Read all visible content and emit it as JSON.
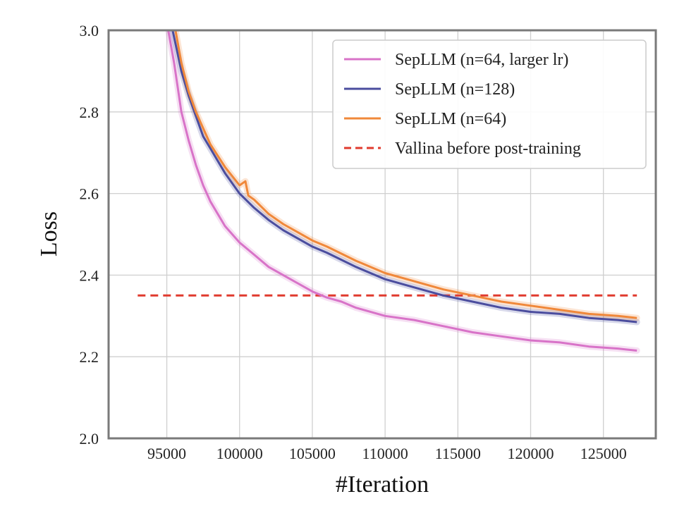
{
  "chart_data": {
    "type": "line",
    "title": "",
    "xlabel": "#Iteration",
    "ylabel": "Loss",
    "xlim": [
      91000,
      128600
    ],
    "ylim": [
      2.0,
      3.0
    ],
    "x_ticks": [
      95000,
      100000,
      105000,
      110000,
      115000,
      120000,
      125000
    ],
    "x_tick_labels": [
      "95000",
      "100000",
      "105000",
      "110000",
      "115000",
      "120000",
      "125000"
    ],
    "y_ticks": [
      2.0,
      2.2,
      2.4,
      2.6,
      2.8,
      3.0
    ],
    "y_tick_labels": [
      "2.0",
      "2.2",
      "2.4",
      "2.6",
      "2.8",
      "3.0"
    ],
    "grid": true,
    "legend_position": "top-right",
    "series": [
      {
        "name": "SepLLM (n=64, larger lr)",
        "color": "#d873c8",
        "style": "solid",
        "x": [
          95100,
          95500,
          96000,
          96500,
          97000,
          97500,
          98000,
          99000,
          100000,
          101000,
          102000,
          103000,
          104000,
          105000,
          106000,
          107000,
          108000,
          110000,
          112000,
          114000,
          116000,
          118000,
          120000,
          122000,
          124000,
          126000,
          127300
        ],
        "y": [
          3.0,
          2.92,
          2.8,
          2.73,
          2.67,
          2.62,
          2.58,
          2.52,
          2.48,
          2.45,
          2.42,
          2.4,
          2.38,
          2.36,
          2.345,
          2.335,
          2.32,
          2.3,
          2.29,
          2.275,
          2.26,
          2.25,
          2.24,
          2.235,
          2.225,
          2.22,
          2.215
        ]
      },
      {
        "name": "SepLLM (n=128)",
        "color": "#4b4d9e",
        "style": "solid",
        "x": [
          95400,
          95700,
          96000,
          96500,
          97000,
          97500,
          98000,
          99000,
          100000,
          101000,
          102000,
          103000,
          104000,
          105000,
          106000,
          108000,
          110000,
          112000,
          114000,
          116000,
          118000,
          120000,
          122000,
          124000,
          126000,
          127300
        ],
        "y": [
          3.0,
          2.95,
          2.9,
          2.84,
          2.79,
          2.74,
          2.71,
          2.65,
          2.6,
          2.565,
          2.535,
          2.51,
          2.49,
          2.47,
          2.455,
          2.42,
          2.39,
          2.37,
          2.35,
          2.335,
          2.32,
          2.31,
          2.305,
          2.295,
          2.29,
          2.285
        ]
      },
      {
        "name": "SepLLM (n=64)",
        "color": "#f0883a",
        "style": "solid",
        "x": [
          95600,
          96000,
          96500,
          97000,
          97500,
          98000,
          99000,
          100000,
          100400,
          100600,
          101000,
          102000,
          103000,
          104000,
          105000,
          106000,
          108000,
          110000,
          112000,
          114000,
          116000,
          118000,
          120000,
          122000,
          124000,
          126000,
          127300
        ],
        "y": [
          3.0,
          2.92,
          2.85,
          2.8,
          2.76,
          2.72,
          2.665,
          2.62,
          2.63,
          2.595,
          2.585,
          2.55,
          2.525,
          2.505,
          2.485,
          2.47,
          2.435,
          2.405,
          2.385,
          2.365,
          2.35,
          2.335,
          2.325,
          2.315,
          2.305,
          2.3,
          2.295
        ]
      },
      {
        "name": "Vallina before post-training",
        "color": "#e03a2e",
        "style": "dashed",
        "x": [
          93000,
          127300
        ],
        "y": [
          2.35,
          2.35
        ]
      }
    ]
  }
}
